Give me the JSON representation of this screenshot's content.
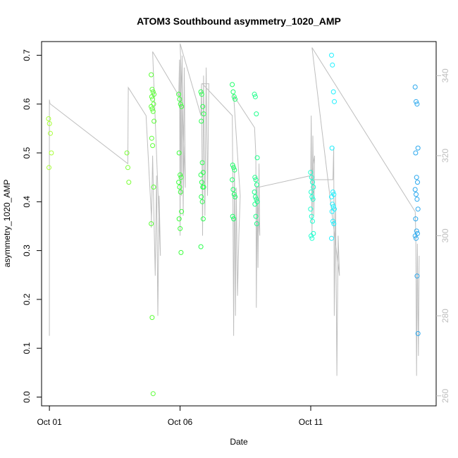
{
  "chart_data": {
    "type": "scatter",
    "title": "ATOM3 Southbound asymmetry_1020_AMP",
    "xlabel": "Date",
    "ylabel": "asymmetry_1020_AMP",
    "x_unit": "days since Oct 01",
    "xlim": [
      -0.3,
      14.8
    ],
    "ylim": [
      -0.018,
      0.728
    ],
    "y2lim": [
      257.5,
      348.5
    ],
    "x_ticks": [
      {
        "label": "Oct 01",
        "value": 0
      },
      {
        "label": "Oct 06",
        "value": 5
      },
      {
        "label": "Oct 11",
        "value": 10
      }
    ],
    "y_ticks": [
      {
        "label": "0.0",
        "value": 0.0
      },
      {
        "label": "0.1",
        "value": 0.1
      },
      {
        "label": "0.2",
        "value": 0.2
      },
      {
        "label": "0.3",
        "value": 0.3
      },
      {
        "label": "0.4",
        "value": 0.4
      },
      {
        "label": "0.5",
        "value": 0.5
      },
      {
        "label": "0.6",
        "value": 0.6
      },
      {
        "label": "0.7",
        "value": 0.7
      }
    ],
    "y2_ticks": [
      {
        "label": "260",
        "value": 260
      },
      {
        "label": "280",
        "value": 280
      },
      {
        "label": "300",
        "value": 300
      },
      {
        "label": "320",
        "value": 320
      },
      {
        "label": "340",
        "value": 340
      }
    ],
    "secondary_line_color": "#bebebe",
    "point_colors": [
      "#a8ff38",
      "#5cff38",
      "#2fff45",
      "#1fff6a",
      "#1fff8c",
      "#1fffb0",
      "#1fffd0",
      "#1ff0ff",
      "#1fd0ff",
      "#2aa8ee"
    ],
    "clusters": [
      {
        "x": 0.02,
        "color": "#a8ff38",
        "values": [
          0.57,
          0.56,
          0.54,
          0.5,
          0.47
        ]
      },
      {
        "x": 3.02,
        "color": "#7cff38",
        "values": [
          0.5,
          0.47,
          0.44
        ]
      },
      {
        "x": 3.95,
        "color": "#5cff38",
        "values": [
          0.66,
          0.63,
          0.625,
          0.62,
          0.615,
          0.61,
          0.6,
          0.595,
          0.59,
          0.585,
          0.565,
          0.53,
          0.515,
          0.43,
          0.355,
          0.163,
          0.007
        ]
      },
      {
        "x": 5.0,
        "color": "#3cff3c",
        "values": [
          0.62,
          0.61,
          0.6,
          0.595,
          0.5,
          0.455,
          0.45,
          0.44,
          0.43,
          0.42,
          0.38,
          0.365,
          0.345,
          0.296
        ]
      },
      {
        "x": 5.85,
        "color": "#2cff50",
        "values": [
          0.625,
          0.62,
          0.595,
          0.58,
          0.565,
          0.48,
          0.46,
          0.455,
          0.44,
          0.43,
          0.43,
          0.41,
          0.4,
          0.365,
          0.308
        ]
      },
      {
        "x": 7.05,
        "color": "#1fff6a",
        "values": [
          0.64,
          0.625,
          0.615,
          0.61,
          0.475,
          0.47,
          0.465,
          0.445,
          0.425,
          0.415,
          0.41,
          0.37,
          0.365
        ]
      },
      {
        "x": 7.9,
        "color": "#1fff8c",
        "values": [
          0.62,
          0.615,
          0.58,
          0.49,
          0.45,
          0.445,
          0.435,
          0.42,
          0.41,
          0.405,
          0.4,
          0.395,
          0.37,
          0.355
        ]
      },
      {
        "x": 10.05,
        "color": "#1fffd0",
        "values": [
          0.46,
          0.45,
          0.44,
          0.43,
          0.42,
          0.41,
          0.405,
          0.385,
          0.37,
          0.36,
          0.335,
          0.33,
          0.325
        ]
      },
      {
        "x": 10.85,
        "color": "#1ff0ff",
        "values": [
          0.7,
          0.68,
          0.625,
          0.605,
          0.51,
          0.42,
          0.415,
          0.41,
          0.395,
          0.39,
          0.385,
          0.38,
          0.36,
          0.355,
          0.325
        ]
      },
      {
        "x": 14.05,
        "color": "#2aa8ee",
        "values": [
          0.635,
          0.605,
          0.6,
          0.51,
          0.5,
          0.45,
          0.44,
          0.425,
          0.415,
          0.405,
          0.385,
          0.365,
          0.34,
          0.335,
          0.33,
          0.325,
          0.248,
          0.13
        ]
      }
    ],
    "secondary_series": {
      "name": "",
      "path": [
        [
          0.0,
          330
        ],
        [
          0.0,
          334
        ],
        [
          0.0,
          275
        ],
        [
          0.0,
          334
        ],
        [
          0.02,
          333
        ],
        [
          3.0,
          318
        ],
        [
          3.02,
          337
        ],
        [
          3.7,
          330
        ],
        [
          3.9,
          305
        ],
        [
          3.9,
          302
        ],
        [
          3.95,
          320
        ],
        [
          4.05,
          290
        ],
        [
          4.1,
          315
        ],
        [
          4.15,
          280
        ],
        [
          4.2,
          310
        ],
        [
          4.25,
          295
        ],
        [
          3.95,
          346
        ],
        [
          4.95,
          335
        ],
        [
          4.98,
          344
        ],
        [
          5.0,
          300
        ],
        [
          5.02,
          344
        ],
        [
          5.05,
          310
        ],
        [
          5.08,
          345
        ],
        [
          5.12,
          305
        ],
        [
          5.16,
          342
        ],
        [
          5.2,
          312
        ],
        [
          5.0,
          348
        ],
        [
          5.8,
          330
        ],
        [
          5.82,
          338
        ],
        [
          5.86,
          300
        ],
        [
          5.9,
          340
        ],
        [
          5.95,
          305
        ],
        [
          6.0,
          342
        ],
        [
          6.05,
          310
        ],
        [
          6.1,
          338
        ],
        [
          5.85,
          338
        ],
        [
          7.0,
          330
        ],
        [
          7.02,
          310
        ],
        [
          7.05,
          275
        ],
        [
          7.08,
          318
        ],
        [
          7.12,
          280
        ],
        [
          7.15,
          312
        ],
        [
          7.2,
          285
        ],
        [
          7.25,
          300
        ],
        [
          7.3,
          310
        ],
        [
          7.05,
          335
        ],
        [
          7.85,
          327
        ],
        [
          7.9,
          320
        ],
        [
          7.92,
          282
        ],
        [
          7.95,
          312
        ],
        [
          7.98,
          292
        ],
        [
          8.02,
          318
        ],
        [
          8.05,
          300
        ],
        [
          7.92,
          312
        ],
        [
          10.0,
          315
        ],
        [
          10.02,
          330
        ],
        [
          10.05,
          300
        ],
        [
          10.08,
          325
        ],
        [
          10.12,
          305
        ],
        [
          10.15,
          320
        ],
        [
          10.0,
          314
        ],
        [
          10.85,
          314
        ],
        [
          10.88,
          322
        ],
        [
          10.9,
          280
        ],
        [
          10.95,
          310
        ],
        [
          11.0,
          265
        ],
        [
          11.05,
          300
        ],
        [
          11.1,
          290
        ],
        [
          10.05,
          347
        ],
        [
          14.0,
          306
        ],
        [
          14.02,
          300
        ],
        [
          14.05,
          265
        ],
        [
          14.08,
          298
        ],
        [
          14.12,
          270
        ],
        [
          14.15,
          295
        ]
      ]
    }
  }
}
